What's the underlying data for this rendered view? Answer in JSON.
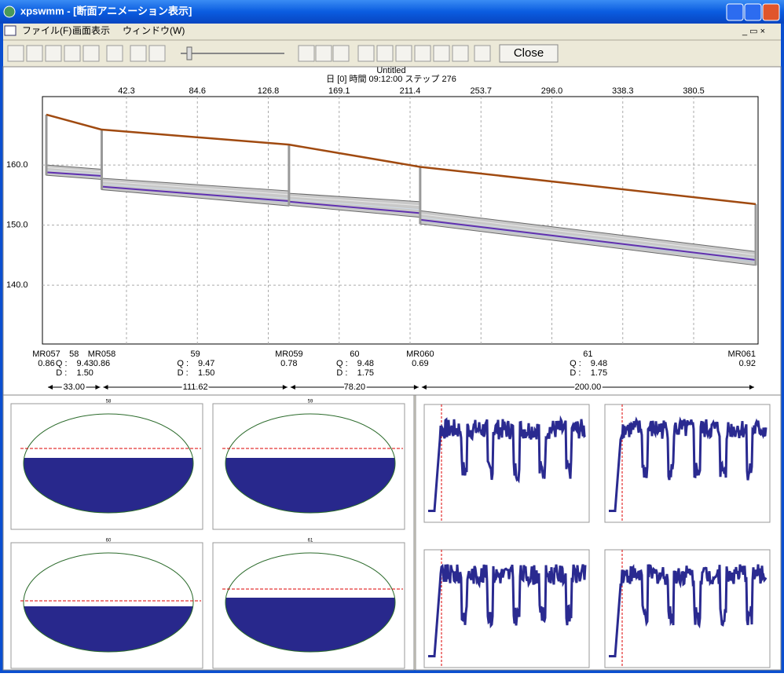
{
  "window": {
    "title": "xpswmm - [断面アニメーション表示]"
  },
  "menu": [
    "ファイル(F)",
    "画面表示",
    "ウィンドウ(W)"
  ],
  "toolbar": {
    "close": "Close"
  },
  "profile": {
    "title": "Untitled",
    "subtitle": "日 [0] 時間 09:12:00 ステップ 276",
    "top_ticks": [
      "42.3",
      "84.6",
      "126.8",
      "169.1",
      "211.4",
      "253.7",
      "296.0",
      "338.3",
      "380.5"
    ],
    "ylim": [
      130.2,
      171.4
    ],
    "yticks": [
      {
        "value": 160,
        "label": "160.0"
      },
      {
        "value": 150,
        "label": "150.0"
      },
      {
        "value": 140,
        "label": "140.0"
      }
    ],
    "q_label": "Q :",
    "d_label": "D :",
    "nodes": [
      {
        "name": "MR057",
        "value": "0.86",
        "ground": 168.4
      },
      {
        "name": "MR058",
        "value": "0.86",
        "ground": 165.9
      },
      {
        "name": "MR059",
        "value": "0.78",
        "ground": 163.4
      },
      {
        "name": "MR060",
        "value": "0.69",
        "ground": 159.7
      },
      {
        "name": "MR061",
        "value": "0.92",
        "ground": 153.5
      }
    ],
    "links": [
      {
        "name": "58",
        "q": "9.43",
        "d": "1.50",
        "length": 33.0,
        "length_label": "33.00",
        "crown": [
          160.0,
          159.3
        ],
        "invert": [
          158.3,
          157.6
        ],
        "water": [
          158.8,
          158.2
        ]
      },
      {
        "name": "59",
        "q": "9.47",
        "d": "1.50",
        "length": 111.62,
        "length_label": "111.62",
        "crown": [
          157.8,
          155.7
        ],
        "invert": [
          155.9,
          153.2
        ],
        "water": [
          156.4,
          154.0
        ]
      },
      {
        "name": "60",
        "q": "9.48",
        "d": "1.75",
        "length": 78.2,
        "length_label": "78.20",
        "crown": [
          155.3,
          153.9
        ],
        "invert": [
          153.3,
          151.3
        ],
        "water": [
          153.9,
          152.0
        ]
      },
      {
        "name": "61",
        "q": "9.48",
        "d": "1.75",
        "length": 200.0,
        "length_label": "200.00",
        "crown": [
          152.4,
          145.6
        ],
        "invert": [
          150.2,
          143.3
        ],
        "water": [
          150.9,
          144.2
        ]
      }
    ]
  },
  "sections": [
    {
      "title": "58"
    },
    {
      "title": "59"
    },
    {
      "title": "60"
    },
    {
      "title": "61"
    }
  ]
}
